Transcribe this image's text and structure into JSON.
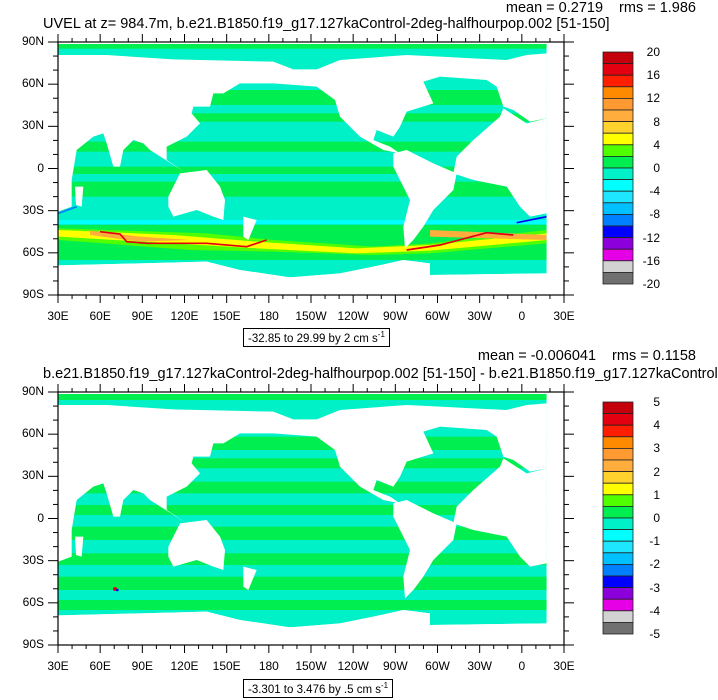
{
  "chart_data": [
    {
      "type": "heatmap",
      "title": "UVEL at z= 984.7m, b.e21.B1850.f19_g17.127kaControl-2deg-halfhourpop.002 [51-150]",
      "mean_label": "mean = 0.2719",
      "rms_label": "rms = 1.986",
      "x_ticks": [
        "30E",
        "60E",
        "90E",
        "120E",
        "150E",
        "180",
        "150W",
        "120W",
        "90W",
        "60W",
        "30W",
        "0",
        "30E"
      ],
      "y_ticks": [
        "90N",
        "60N",
        "30N",
        "0",
        "30S",
        "60S",
        "90S"
      ],
      "xlim": [
        "30E",
        "30E"
      ],
      "ylim": [
        "90S",
        "90N"
      ],
      "colorbar": {
        "labels": [
          "20",
          "16",
          "12",
          "8",
          "4",
          "0",
          "-4",
          "-8",
          "-12",
          "-16",
          "-20"
        ],
        "levels_min": -20,
        "levels_max": 20,
        "level_step": 2,
        "colors": [
          "#c3000c",
          "#e30010",
          "#ff1e00",
          "#ff8a00",
          "#ff9a32",
          "#ffad3c",
          "#ffd22e",
          "#ffff00",
          "#50ff00",
          "#00ee50",
          "#00f0c8",
          "#00ffff",
          "#1ee6ff",
          "#00c0ff",
          "#0080ff",
          "#0000ff",
          "#8c00dc",
          "#e600e6",
          "#d2d2d2",
          "#707070"
        ]
      },
      "contour_info": "-32.85 to 29.99 by 2 cm s",
      "contour_info_sup": "-1",
      "land_color": "#ffffff"
    },
    {
      "type": "heatmap",
      "title": "b.e21.B1850.f19_g17.127kaControl-2deg-halfhourpop.002 [51-150] - b.e21.B1850.f19_g17.127kaControl",
      "mean_label": "mean = -0.006041",
      "rms_label": "rms = 0.1158",
      "x_ticks": [
        "30E",
        "60E",
        "90E",
        "120E",
        "150E",
        "180",
        "150W",
        "120W",
        "90W",
        "60W",
        "30W",
        "0",
        "30E"
      ],
      "y_ticks": [
        "90N",
        "60N",
        "30N",
        "0",
        "30S",
        "60S",
        "90S"
      ],
      "xlim": [
        "30E",
        "30E"
      ],
      "ylim": [
        "90S",
        "90N"
      ],
      "colorbar": {
        "labels": [
          "5",
          "4",
          "3",
          "2",
          "1",
          "0",
          "-1",
          "-2",
          "-3",
          "-4",
          "-5"
        ],
        "levels_min": -5,
        "levels_max": 5,
        "level_step": 0.5,
        "colors": [
          "#c3000c",
          "#e30010",
          "#ff1e00",
          "#ff8a00",
          "#ff9a32",
          "#ffad3c",
          "#ffd22e",
          "#ffff00",
          "#50ff00",
          "#00ee50",
          "#00f0c8",
          "#00ffff",
          "#1ee6ff",
          "#00c0ff",
          "#0080ff",
          "#0000ff",
          "#8c00dc",
          "#e600e6",
          "#d2d2d2",
          "#707070"
        ]
      },
      "contour_info": "-3.301 to 3.476 by .5 cm s",
      "contour_info_sup": "-1",
      "land_color": "#ffffff"
    }
  ]
}
